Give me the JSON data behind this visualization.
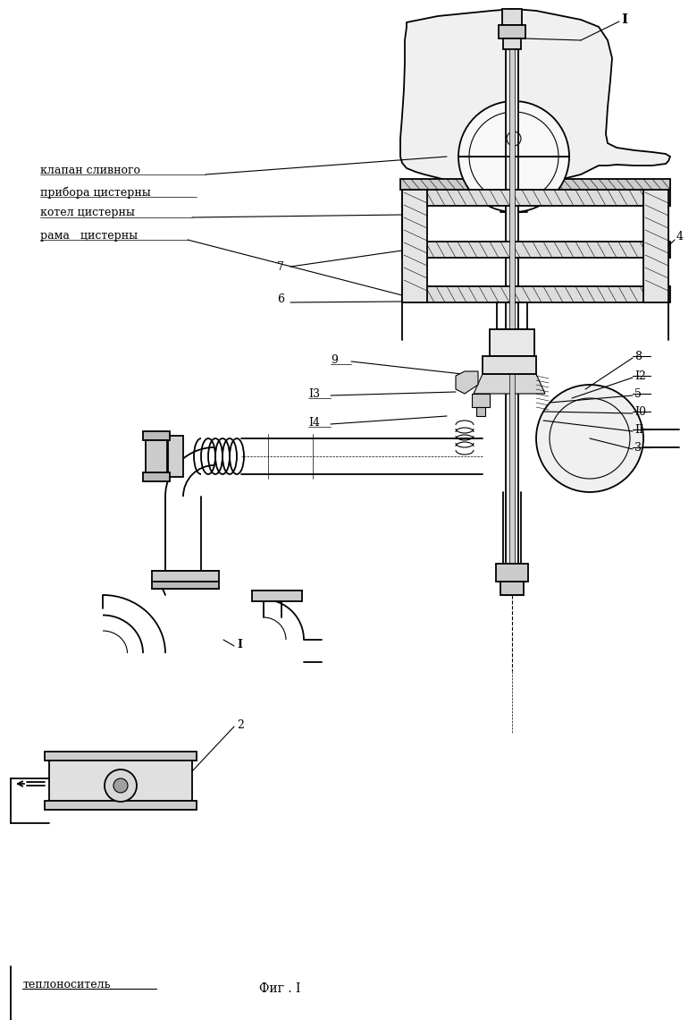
{
  "bg_color": "#ffffff",
  "line_color": "#000000",
  "fig_width": 7.8,
  "fig_height": 11.4,
  "dpi": 100,
  "bottom_label": "теплоноситель",
  "fig_label": "Фиг . I",
  "labels": {
    "1_top": "I",
    "4": "4",
    "klap": "клапан сливного",
    "pribor": "прибора цистерны",
    "kotel": "котел цистерны",
    "rama": "рама   цистерны",
    "7": "7",
    "6": "6",
    "9": "9",
    "8": "8",
    "12": "I2",
    "13": "I3",
    "5": "5",
    "14": "I4",
    "10": "I0",
    "11": "II",
    "3": "3",
    "1_bot": "I",
    "2": "2"
  }
}
